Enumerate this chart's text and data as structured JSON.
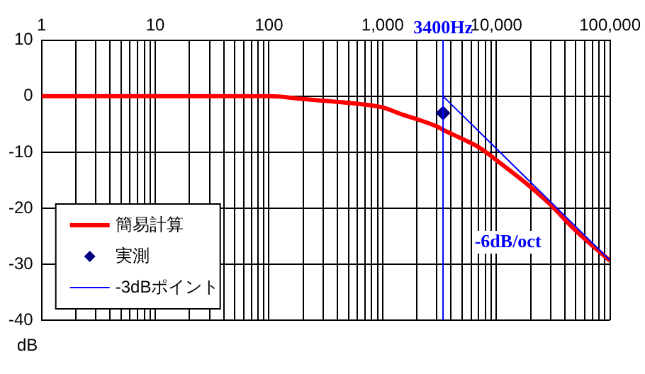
{
  "chart_data": {
    "type": "line",
    "xlabel": null,
    "ylabel": "dB",
    "annotations": [
      "-6dB/oct"
    ],
    "xlim": [
      1,
      100000
    ],
    "xticks": [
      1,
      {
        "value": 2,
        "label": null
      },
      {
        "value": 3,
        "label": null
      },
      {
        "value": 4,
        "label": null
      },
      {
        "value": 5,
        "label": null
      },
      {
        "value": 6,
        "label": null
      },
      {
        "value": 7,
        "label": null
      },
      {
        "value": 8,
        "label": null
      },
      {
        "value": 9,
        "label": null
      },
      10,
      {
        "value": 20,
        "label": null
      },
      {
        "value": 30,
        "label": null
      },
      {
        "value": 40,
        "label": null
      },
      {
        "value": 50,
        "label": null
      },
      {
        "value": 60,
        "label": null
      },
      {
        "value": 70,
        "label": null
      },
      {
        "value": 80,
        "label": null
      },
      {
        "value": 90,
        "label": null
      },
      100,
      {
        "value": 200,
        "label": null
      },
      {
        "value": 300,
        "label": null
      },
      {
        "value": 400,
        "label": null
      },
      {
        "value": 500,
        "label": null
      },
      {
        "value": 600,
        "label": null
      },
      {
        "value": 700,
        "label": null
      },
      {
        "value": 800,
        "label": null
      },
      {
        "value": 900,
        "label": null
      },
      {
        "value": 1000,
        "label": "1,000"
      },
      {
        "value": 2000,
        "label": null
      },
      {
        "value": 3000,
        "label": null
      },
      {
        "value": 4000,
        "label": null
      },
      {
        "value": 5000,
        "label": null
      },
      {
        "value": 6000,
        "label": null
      },
      {
        "value": 7000,
        "label": null
      },
      {
        "value": 8000,
        "label": null
      },
      {
        "value": 9000,
        "label": null
      },
      {
        "value": 10000,
        "label": "10,000"
      },
      {
        "value": 20000,
        "label": null
      },
      {
        "value": 30000,
        "label": null
      },
      {
        "value": 40000,
        "label": null
      },
      {
        "value": 50000,
        "label": null
      },
      {
        "value": 60000,
        "label": null
      },
      {
        "value": 70000,
        "label": null
      },
      {
        "value": 80000,
        "label": null
      },
      {
        "value": 90000,
        "label": null
      },
      {
        "value": 100000,
        "label": "100,000"
      }
    ],
    "ylim": [
      -40,
      10
    ],
    "yticks": [
      -40,
      -30,
      -20,
      -10,
      0,
      10
    ],
    "log": "x",
    "grid": true,
    "legend": "bottom left",
    "ref_lines": [
      {
        "axis": "x",
        "value": 3400,
        "label": "3400Hz",
        "color": "#0000ff"
      }
    ],
    "series": [
      {
        "name": "簡易計算",
        "color": "#ff0000",
        "marker": "none",
        "x": [
          1,
          100,
          200,
          300,
          500,
          1000,
          1500,
          2000,
          3000,
          3400,
          5000,
          7000,
          10000,
          20000,
          30000,
          50000,
          100000
        ],
        "values": [
          0,
          0,
          -0.5,
          -0.8,
          -1.2,
          -2,
          -3.3,
          -4.1,
          -5.4,
          -6,
          -7.6,
          -9.1,
          -11.4,
          -16.2,
          -19.4,
          -24,
          -29.4
        ]
      },
      {
        "name": "実測",
        "type": "scatter",
        "color": "#000080",
        "marker": "diamond",
        "x": [
          3400
        ],
        "values": [
          -3
        ]
      },
      {
        "name": "-3dBポイント",
        "color": "#0000ff",
        "marker": "none",
        "x": [
          3400,
          100000
        ],
        "values": [
          0,
          -29.3
        ]
      }
    ]
  }
}
